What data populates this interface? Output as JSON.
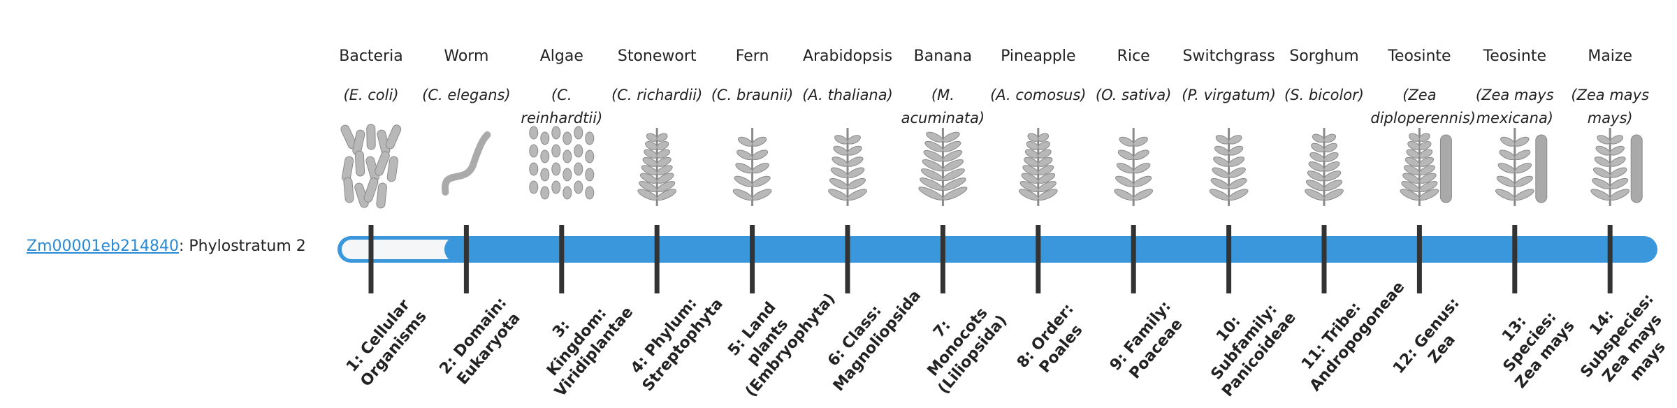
{
  "gene": {
    "id": "Zm00001eb214840",
    "label": ": Phylostratum 2"
  },
  "columns": [
    {
      "name": "Bacteria",
      "species": "(E. coli)",
      "stratum": "1: Cellular Organisms"
    },
    {
      "name": "Worm",
      "species": "(C. elegans)",
      "stratum": "2: Domain: Eukaryota"
    },
    {
      "name": "Algae",
      "species": "(C. reinhardtii)",
      "stratum": "3: Kingdom: Viridiplantae"
    },
    {
      "name": "Stonewort",
      "species": "(C. richardii)",
      "stratum": "4: Phylum: Streptophyta"
    },
    {
      "name": "Fern",
      "species": "(C. braunii)",
      "stratum": "5: Land plants (Embryophyta)"
    },
    {
      "name": "Arabidopsis",
      "species": "(A. thaliana)",
      "stratum": "6: Class: Magnoliopsida"
    },
    {
      "name": "Banana",
      "species": "(M. acuminata)",
      "stratum": "7: Monocots (Liliopsida)"
    },
    {
      "name": "Pineapple",
      "species": "(A. comosus)",
      "stratum": "8: Order: Poales"
    },
    {
      "name": "Rice",
      "species": "(O. sativa)",
      "stratum": "9: Family: Poaceae"
    },
    {
      "name": "Switchgrass",
      "species": "(P. virgatum)",
      "stratum": "10: Subfamily: Panicoideae"
    },
    {
      "name": "Sorghum",
      "species": "(S. bicolor)",
      "stratum": "11: Tribe: Andropogoneae"
    },
    {
      "name": "Teosinte",
      "species": "(Zea diploperennis)",
      "stratum": "12: Genus: Zea"
    },
    {
      "name": "Teosinte",
      "species": "(Zea mays mexicana)",
      "stratum": "13: Species: Zea mays"
    },
    {
      "name": "Maize",
      "species": "(Zea mays mays)",
      "stratum": "14: Subspecies: Zea mays mays"
    }
  ]
}
